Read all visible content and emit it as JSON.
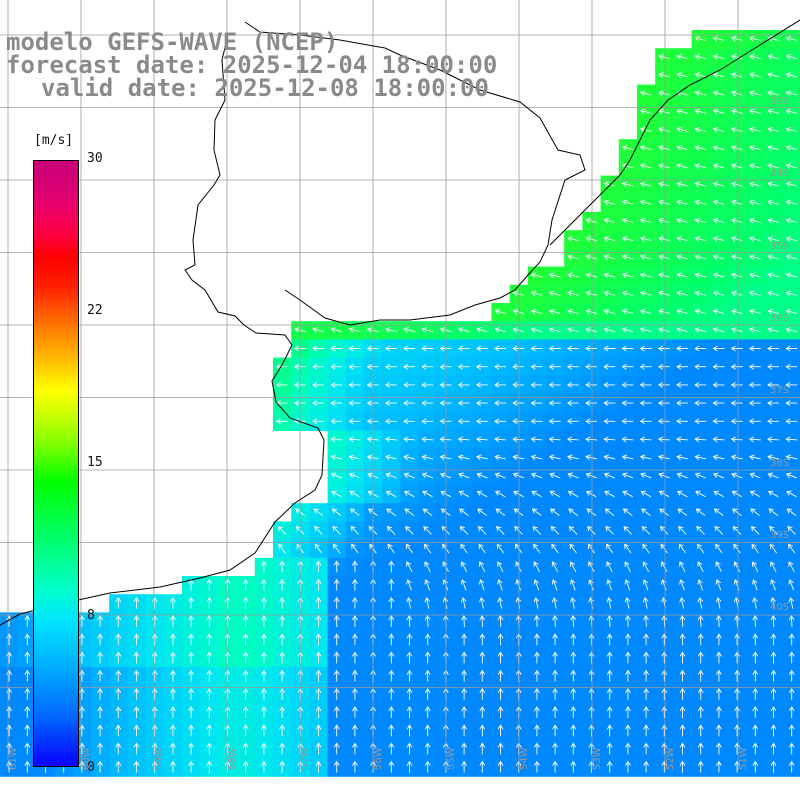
{
  "title": {
    "model": "modelo GEFS-WAVE (NCEP)",
    "forecast": "forecast date: 2025-12-04 18:00:00",
    "valid": "valid date: 2025-12-08 18:00:00"
  },
  "colorbar": {
    "unit": "[m/s]",
    "min": 0,
    "max": 30,
    "ticks": [
      "30",
      "22",
      "15",
      "8",
      "0"
    ],
    "tick_values": [
      30,
      22,
      15,
      8,
      0
    ]
  },
  "lat_labels": [
    "33S",
    "34S",
    "35S",
    "36S",
    "37S",
    "38S",
    "39S",
    "40S"
  ],
  "lon_labels": [
    "61W",
    "60W",
    "59W",
    "58W",
    "57W",
    "56W",
    "55W",
    "54W",
    "53W",
    "52W",
    "51W"
  ],
  "colors": {
    "land": "#ffffff",
    "grid": "#9a9a9a",
    "coast": "#000000",
    "arrow": "#ffffff",
    "title": "#8a8a8a"
  }
}
